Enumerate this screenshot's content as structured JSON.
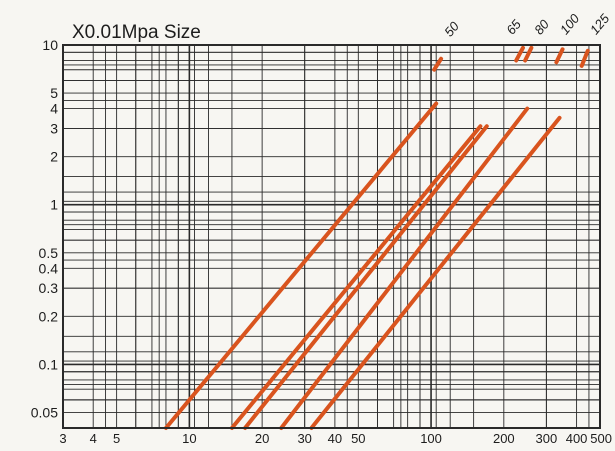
{
  "chart_data": {
    "type": "line",
    "title": "X0.01Mpa Size",
    "xlabel": "",
    "ylabel": "",
    "x_scale": "log",
    "y_scale": "log",
    "xlim": [
      3,
      500
    ],
    "ylim": [
      0.04,
      10
    ],
    "grid": true,
    "x_ticks": [
      3,
      4,
      5,
      10,
      20,
      30,
      40,
      50,
      100,
      200,
      300,
      400,
      500
    ],
    "x_tick_labels": [
      "3",
      "4",
      "5",
      "10",
      "20",
      "30",
      "40",
      "50",
      "100",
      "200",
      "300",
      "400",
      "500"
    ],
    "y_ticks": [
      0.05,
      0.1,
      0.2,
      0.3,
      0.4,
      0.5,
      1,
      2,
      3,
      4,
      5,
      10
    ],
    "y_tick_labels": [
      "0.05",
      "0.1",
      "0.2",
      "0.3",
      "0.4",
      "0.5",
      "1",
      "2",
      "3",
      "4",
      "5",
      "10"
    ],
    "line_color": "#d9541e",
    "series": [
      {
        "name": "50",
        "points": [
          [
            8,
            0.04
          ],
          [
            105,
            4.3
          ]
        ],
        "top_segment": [
          [
            103,
            7.0
          ],
          [
            110,
            8.2
          ]
        ]
      },
      {
        "name": "65",
        "points": [
          [
            15,
            0.04
          ],
          [
            160,
            3.1
          ]
        ],
        "top_segment": [
          [
            225,
            8.0
          ],
          [
            240,
            9.6
          ]
        ]
      },
      {
        "name": "80",
        "points": [
          [
            17,
            0.04
          ],
          [
            170,
            3.1
          ]
        ],
        "top_segment": [
          [
            245,
            8.0
          ],
          [
            260,
            9.6
          ]
        ]
      },
      {
        "name": "100",
        "points": [
          [
            24,
            0.04
          ],
          [
            250,
            4.0
          ]
        ],
        "top_segment": [
          [
            330,
            7.8
          ],
          [
            350,
            9.4
          ]
        ]
      },
      {
        "name": "125",
        "points": [
          [
            32,
            0.04
          ],
          [
            340,
            3.5
          ]
        ],
        "top_segment": [
          [
            420,
            7.4
          ],
          [
            445,
            9.2
          ]
        ]
      }
    ]
  }
}
